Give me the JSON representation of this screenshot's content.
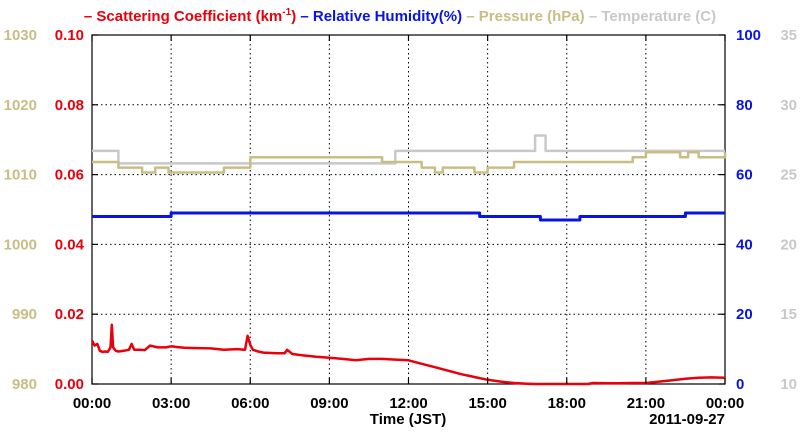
{
  "chart_data": {
    "type": "line",
    "xlabel": "Time (JST)",
    "date_label": "2011-09-27",
    "x_ticks": [
      "00:00",
      "03:00",
      "06:00",
      "09:00",
      "12:00",
      "15:00",
      "18:00",
      "21:00",
      "00:00"
    ],
    "x_unit": "hours",
    "xlim": [
      0,
      24
    ],
    "grid": true,
    "legend_placement": "top",
    "legend": [
      {
        "label_main": "Scattering Coefficient (km",
        "label_sup": "-1",
        "label_end": ")",
        "color": "#e8000b"
      },
      {
        "label_main": "Relative Humidity(%)",
        "color": "#0a14e0"
      },
      {
        "label_main": "Pressure (hPa)",
        "color": "#c9bd86"
      },
      {
        "label_main": "Temperature (C)",
        "color": "#c8c8c8"
      }
    ],
    "axes": {
      "pressure": {
        "ticks": [
          "980",
          "990",
          "1000",
          "1010",
          "1020",
          "1030"
        ],
        "range": [
          980,
          1030
        ],
        "color": "#c9bd86",
        "side": "left-outer"
      },
      "scattering": {
        "ticks": [
          "0.00",
          "0.02",
          "0.04",
          "0.06",
          "0.08",
          "0.10"
        ],
        "range": [
          0,
          0.1
        ],
        "color": "#e8000b",
        "side": "left-inner"
      },
      "humidity": {
        "ticks": [
          "0",
          "20",
          "40",
          "60",
          "80",
          "100"
        ],
        "range": [
          0,
          100
        ],
        "color": "#0a14e0",
        "side": "right-inner"
      },
      "temperature": {
        "ticks": [
          "10",
          "15",
          "20",
          "25",
          "30",
          "35"
        ],
        "range": [
          10,
          35
        ],
        "color": "#c8c8c8",
        "side": "right-outer"
      }
    },
    "series": [
      {
        "name": "Temperature (C)",
        "axis": "temperature",
        "color": "#c8c8c8",
        "style": "step",
        "x": [
          0,
          0.5,
          1.0,
          2.0,
          2.6,
          2.9,
          3.3,
          4.0,
          5.0,
          6.0,
          7.0,
          8.0,
          9.0,
          10.0,
          11.0,
          11.5,
          12.0,
          13.0,
          14.0,
          15.0,
          16.0,
          16.5,
          16.8,
          17.2,
          18.0,
          19.0,
          20.0,
          21.0,
          22.0,
          23.0,
          24.0
        ],
        "y": [
          26.7,
          26.7,
          25.8,
          25.8,
          25.8,
          25.8,
          25.8,
          25.8,
          25.8,
          25.8,
          25.8,
          25.8,
          25.8,
          25.8,
          25.8,
          26.7,
          26.7,
          26.7,
          26.7,
          26.7,
          26.7,
          26.7,
          27.8,
          26.7,
          26.7,
          26.7,
          26.7,
          26.7,
          26.7,
          26.7,
          26.7
        ]
      },
      {
        "name": "Pressure (hPa)",
        "axis": "pressure",
        "color": "#c9bd86",
        "style": "step",
        "x": [
          0,
          1.0,
          1.9,
          2.4,
          2.6,
          2.9,
          3.5,
          5.0,
          6.0,
          7.0,
          8.0,
          9.0,
          10.0,
          11.0,
          11.5,
          12.5,
          13.0,
          13.3,
          14.0,
          14.5,
          15.0,
          15.5,
          16.0,
          17.0,
          18.0,
          19.0,
          20.0,
          20.5,
          21.0,
          22.0,
          22.3,
          22.6,
          23.0,
          24.0
        ],
        "y": [
          1011.8,
          1011.0,
          1010.3,
          1011.0,
          1011.0,
          1010.3,
          1010.3,
          1011.0,
          1012.5,
          1012.5,
          1012.5,
          1012.5,
          1012.5,
          1011.8,
          1011.8,
          1011.0,
          1010.3,
          1011.0,
          1011.0,
          1010.3,
          1011.0,
          1011.0,
          1011.8,
          1011.8,
          1011.8,
          1011.8,
          1011.8,
          1012.5,
          1013.2,
          1013.2,
          1012.5,
          1013.2,
          1012.5,
          1013.2
        ]
      },
      {
        "name": "Relative Humidity(%)",
        "axis": "humidity",
        "color": "#0a14e0",
        "style": "step",
        "x": [
          0,
          2.8,
          3.0,
          4.0,
          6.0,
          9.0,
          12.0,
          14.5,
          14.7,
          16.0,
          16.5,
          17.0,
          18.0,
          18.5,
          19.0,
          20.0,
          21.0,
          22.0,
          22.5,
          23.0,
          24.0
        ],
        "y": [
          48,
          48,
          49,
          49,
          49,
          49,
          49,
          49,
          48,
          48,
          48,
          47,
          47,
          48,
          48,
          48,
          48,
          48,
          49,
          49,
          49
        ]
      },
      {
        "name": "Scattering Coefficient (km-1)",
        "axis": "scattering",
        "color": "#e8000b",
        "style": "line",
        "x": [
          0,
          0.1,
          0.2,
          0.3,
          0.4,
          0.5,
          0.6,
          0.7,
          0.75,
          0.8,
          0.9,
          1.0,
          1.2,
          1.4,
          1.5,
          1.6,
          1.8,
          2.0,
          2.2,
          2.5,
          2.8,
          3.0,
          3.2,
          3.5,
          4.0,
          4.5,
          5.0,
          5.5,
          5.8,
          5.9,
          6.0,
          6.1,
          6.3,
          6.5,
          7.0,
          7.3,
          7.4,
          7.6,
          8.0,
          8.5,
          9.0,
          9.5,
          10.0,
          10.5,
          11.0,
          11.5,
          12.0,
          12.5,
          13.0,
          13.5,
          14.0,
          14.5,
          15.0,
          15.5,
          16.0,
          16.5,
          16.8,
          18.8,
          19.0,
          19.5,
          20.0,
          20.5,
          21.0,
          21.5,
          22.0,
          22.5,
          23.0,
          23.5,
          24.0
        ],
        "y": [
          0.0125,
          0.011,
          0.0115,
          0.0095,
          0.0092,
          0.0093,
          0.0092,
          0.0105,
          0.017,
          0.0105,
          0.0095,
          0.0093,
          0.0095,
          0.0098,
          0.0115,
          0.0098,
          0.0098,
          0.0097,
          0.011,
          0.0105,
          0.0105,
          0.0108,
          0.0106,
          0.0104,
          0.0103,
          0.0102,
          0.0098,
          0.01,
          0.0098,
          0.0138,
          0.0112,
          0.0098,
          0.0093,
          0.009,
          0.0088,
          0.0088,
          0.0098,
          0.0086,
          0.0082,
          0.0078,
          0.0075,
          0.0072,
          0.0068,
          0.0072,
          0.0072,
          0.007,
          0.0068,
          0.0058,
          0.0048,
          0.0038,
          0.0028,
          0.002,
          0.0012,
          0.0007,
          0.0003,
          0.0001,
          0.0,
          0.0,
          0.0003,
          0.0002,
          0.0002,
          0.0003,
          0.0003,
          0.0007,
          0.0011,
          0.0015,
          0.0018,
          0.0019,
          0.0018
        ]
      }
    ]
  }
}
